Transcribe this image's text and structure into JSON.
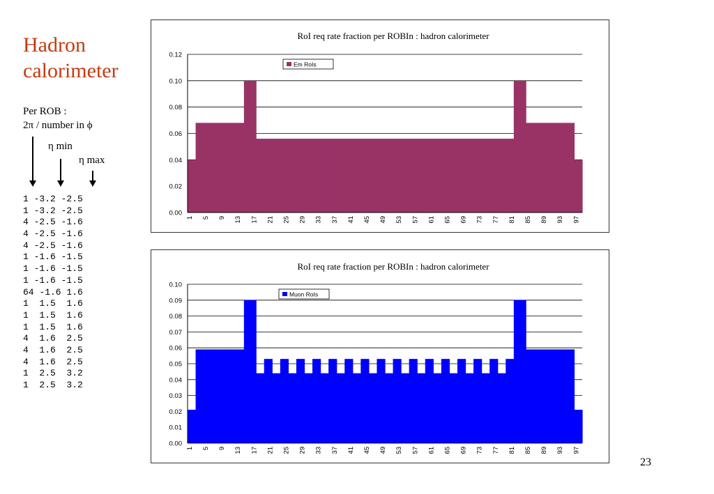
{
  "slide": {
    "title_lines": [
      "Hadron",
      "calorimeter"
    ],
    "per_rob_lines": [
      "Per ROB :",
      "2π / number in ϕ"
    ],
    "eta_min": "η min",
    "eta_max": "η max",
    "page_number": "23"
  },
  "rob_table": [
    "1 -3.2 -2.5",
    "1 -3.2 -2.5",
    "4 -2.5 -1.6",
    "4 -2.5 -1.6",
    "4 -2.5 -1.6",
    "1 -1.6 -1.5",
    "1 -1.6 -1.5",
    "1 -1.6 -1.5",
    "64 -1.6 1.6",
    "1  1.5  1.6",
    "1  1.5  1.6",
    "1  1.5  1.6",
    "4  1.6  2.5",
    "4  1.6  2.5",
    "4  1.6  2.5",
    "1  2.5  3.2",
    "1  2.5  3.2"
  ],
  "chart_data": [
    {
      "type": "bar",
      "title": "RoI req rate fraction per ROBIn : hadron calorimeter",
      "xlabel": "",
      "ylabel": "",
      "x_start": 1,
      "x_count": 98,
      "xticks": [
        "1",
        "5",
        "9",
        "13",
        "17",
        "21",
        "25",
        "29",
        "33",
        "37",
        "41",
        "45",
        "49",
        "53",
        "57",
        "61",
        "65",
        "69",
        "73",
        "77",
        "81",
        "85",
        "89",
        "93",
        "97"
      ],
      "ylim": [
        0,
        0.12
      ],
      "yticks": [
        "0.00",
        "0.02",
        "0.04",
        "0.06",
        "0.08",
        "0.10",
        "0.12"
      ],
      "grid": true,
      "legend": "top-left",
      "color": "#993366",
      "series": [
        {
          "name": "Em RoIs",
          "segments": [
            {
              "from": 1,
              "to": 2,
              "value": 0.04
            },
            {
              "from": 3,
              "to": 14,
              "value": 0.068
            },
            {
              "from": 15,
              "to": 17,
              "value": 0.1
            },
            {
              "from": 18,
              "to": 81,
              "value": 0.056
            },
            {
              "from": 82,
              "to": 84,
              "value": 0.1
            },
            {
              "from": 85,
              "to": 96,
              "value": 0.068
            },
            {
              "from": 97,
              "to": 98,
              "value": 0.04
            }
          ]
        }
      ]
    },
    {
      "type": "bar",
      "title": "RoI req rate fraction per ROBIn : hadron calorimeter",
      "xlabel": "",
      "ylabel": "",
      "x_start": 1,
      "x_count": 98,
      "xticks": [
        "1",
        "5",
        "9",
        "13",
        "17",
        "21",
        "25",
        "29",
        "33",
        "37",
        "41",
        "45",
        "49",
        "53",
        "57",
        "61",
        "65",
        "69",
        "73",
        "77",
        "81",
        "85",
        "89",
        "93",
        "97"
      ],
      "ylim": [
        0,
        0.1
      ],
      "yticks": [
        "0.00",
        "0.01",
        "0.02",
        "0.03",
        "0.04",
        "0.05",
        "0.06",
        "0.07",
        "0.08",
        "0.09",
        "0.10"
      ],
      "grid": true,
      "legend": "top-left",
      "color": "#0000ff",
      "series": [
        {
          "name": "Muon RoIs",
          "segments": [
            {
              "from": 1,
              "to": 2,
              "value": 0.021
            },
            {
              "from": 3,
              "to": 14,
              "value": 0.059
            },
            {
              "from": 15,
              "to": 17,
              "value": 0.09
            },
            {
              "from": 18,
              "to": 81,
              "pattern": [
                0.044,
                0.044,
                0.053,
                0.053
              ]
            },
            {
              "from": 82,
              "to": 84,
              "value": 0.09
            },
            {
              "from": 85,
              "to": 96,
              "value": 0.059
            },
            {
              "from": 97,
              "to": 98,
              "value": 0.021
            }
          ]
        }
      ]
    }
  ]
}
